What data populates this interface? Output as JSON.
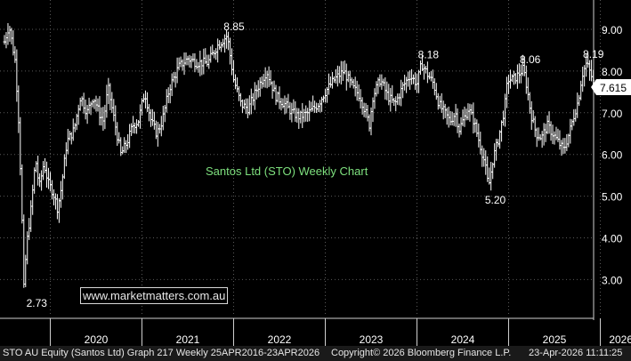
{
  "chart_data": {
    "type": "ohlc-bar",
    "title": "Santos Ltd (STO) Weekly Chart",
    "ylim": [
      2.0,
      9.5
    ],
    "y_ticks": [
      "3.00",
      "4.00",
      "5.00",
      "6.00",
      "7.00",
      "8.00",
      "9.00"
    ],
    "x_years": [
      "2020",
      "2021",
      "2022",
      "2023",
      "2024",
      "2025",
      "2026"
    ],
    "x_range_years": [
      2019.5,
      2026.45
    ],
    "last_price": "7.615",
    "annotations": [
      {
        "text": "8.85",
        "x": 2021.93,
        "y": 8.85
      },
      {
        "text": "2.73",
        "x": 2019.7,
        "y": 2.73
      },
      {
        "text": "8.18",
        "x": 2024.05,
        "y": 8.18
      },
      {
        "text": "5.20",
        "x": 2024.78,
        "y": 5.2
      },
      {
        "text": "8.06",
        "x": 2025.16,
        "y": 8.06
      },
      {
        "text": "8.19",
        "x": 2025.85,
        "y": 8.19
      }
    ],
    "price_path": [
      [
        2019.5,
        8.7
      ],
      [
        2019.55,
        9.1
      ],
      [
        2019.62,
        8.2
      ],
      [
        2019.66,
        6.6
      ],
      [
        2019.69,
        4.6
      ],
      [
        2019.71,
        2.73
      ],
      [
        2019.74,
        3.8
      ],
      [
        2019.79,
        4.7
      ],
      [
        2019.84,
        5.9
      ],
      [
        2019.88,
        5.2
      ],
      [
        2019.93,
        5.8
      ],
      [
        2019.98,
        5.3
      ],
      [
        2020.03,
        5.1
      ],
      [
        2020.08,
        4.7
      ],
      [
        2020.12,
        5.2
      ],
      [
        2020.18,
        6.3
      ],
      [
        2020.26,
        6.6
      ],
      [
        2020.33,
        7.4
      ],
      [
        2020.4,
        7.0
      ],
      [
        2020.47,
        7.4
      ],
      [
        2020.53,
        7.0
      ],
      [
        2020.58,
        6.8
      ],
      [
        2020.63,
        7.6
      ],
      [
        2020.7,
        6.8
      ],
      [
        2020.77,
        6.0
      ],
      [
        2020.84,
        6.3
      ],
      [
        2020.9,
        6.7
      ],
      [
        2020.96,
        6.8
      ],
      [
        2021.03,
        7.5
      ],
      [
        2021.1,
        6.8
      ],
      [
        2021.16,
        6.5
      ],
      [
        2021.22,
        6.8
      ],
      [
        2021.3,
        7.6
      ],
      [
        2021.4,
        8.1
      ],
      [
        2021.5,
        8.3
      ],
      [
        2021.6,
        8.2
      ],
      [
        2021.72,
        8.2
      ],
      [
        2021.82,
        8.6
      ],
      [
        2021.93,
        8.85
      ],
      [
        2022.0,
        7.8
      ],
      [
        2022.08,
        7.2
      ],
      [
        2022.16,
        7.1
      ],
      [
        2022.26,
        7.6
      ],
      [
        2022.36,
        8.0
      ],
      [
        2022.46,
        7.4
      ],
      [
        2022.56,
        7.2
      ],
      [
        2022.64,
        7.0
      ],
      [
        2022.72,
        6.9
      ],
      [
        2022.82,
        7.0
      ],
      [
        2022.92,
        7.2
      ],
      [
        2023.0,
        7.5
      ],
      [
        2023.1,
        7.8
      ],
      [
        2023.2,
        8.0
      ],
      [
        2023.3,
        7.6
      ],
      [
        2023.38,
        7.4
      ],
      [
        2023.44,
        7.0
      ],
      [
        2023.48,
        6.7
      ],
      [
        2023.52,
        7.4
      ],
      [
        2023.6,
        7.8
      ],
      [
        2023.68,
        7.4
      ],
      [
        2023.76,
        7.2
      ],
      [
        2023.84,
        7.6
      ],
      [
        2023.92,
        7.9
      ],
      [
        2024.0,
        7.7
      ],
      [
        2024.05,
        8.18
      ],
      [
        2024.12,
        7.9
      ],
      [
        2024.18,
        7.7
      ],
      [
        2024.24,
        7.2
      ],
      [
        2024.3,
        7.0
      ],
      [
        2024.36,
        6.8
      ],
      [
        2024.42,
        7.0
      ],
      [
        2024.46,
        6.6
      ],
      [
        2024.5,
        6.8
      ],
      [
        2024.56,
        7.1
      ],
      [
        2024.62,
        6.8
      ],
      [
        2024.68,
        6.3
      ],
      [
        2024.74,
        5.8
      ],
      [
        2024.78,
        5.2
      ],
      [
        2024.83,
        5.9
      ],
      [
        2024.88,
        6.3
      ],
      [
        2024.93,
        6.8
      ],
      [
        2024.96,
        7.2
      ],
      [
        2024.99,
        7.8
      ],
      [
        2025.05,
        7.8
      ],
      [
        2025.1,
        7.9
      ],
      [
        2025.16,
        8.06
      ],
      [
        2025.2,
        7.6
      ],
      [
        2025.24,
        7.0
      ],
      [
        2025.3,
        6.5
      ],
      [
        2025.36,
        6.4
      ],
      [
        2025.42,
        6.7
      ],
      [
        2025.48,
        6.5
      ],
      [
        2025.54,
        6.3
      ],
      [
        2025.6,
        6.1
      ],
      [
        2025.66,
        6.5
      ],
      [
        2025.72,
        7.0
      ],
      [
        2025.76,
        7.3
      ],
      [
        2025.8,
        7.9
      ],
      [
        2025.85,
        8.19
      ],
      [
        2025.9,
        7.9
      ],
      [
        2025.94,
        7.615
      ]
    ]
  },
  "watermark": "www.marketmatters.com.au",
  "footer": {
    "left": "STO AU Equity (Santos Ltd) Graph 217 Weekly 25APR2016-23APR2026",
    "middle": "Copyright© 2026 Bloomberg Finance L.P.",
    "right": "23-Apr-2026 11:11:25"
  },
  "colors": {
    "background": "#000000",
    "bars": "#ffffff",
    "grid": "#5a5a5a",
    "title": "#7ee07e",
    "last_price_tag": "#ffffff"
  }
}
